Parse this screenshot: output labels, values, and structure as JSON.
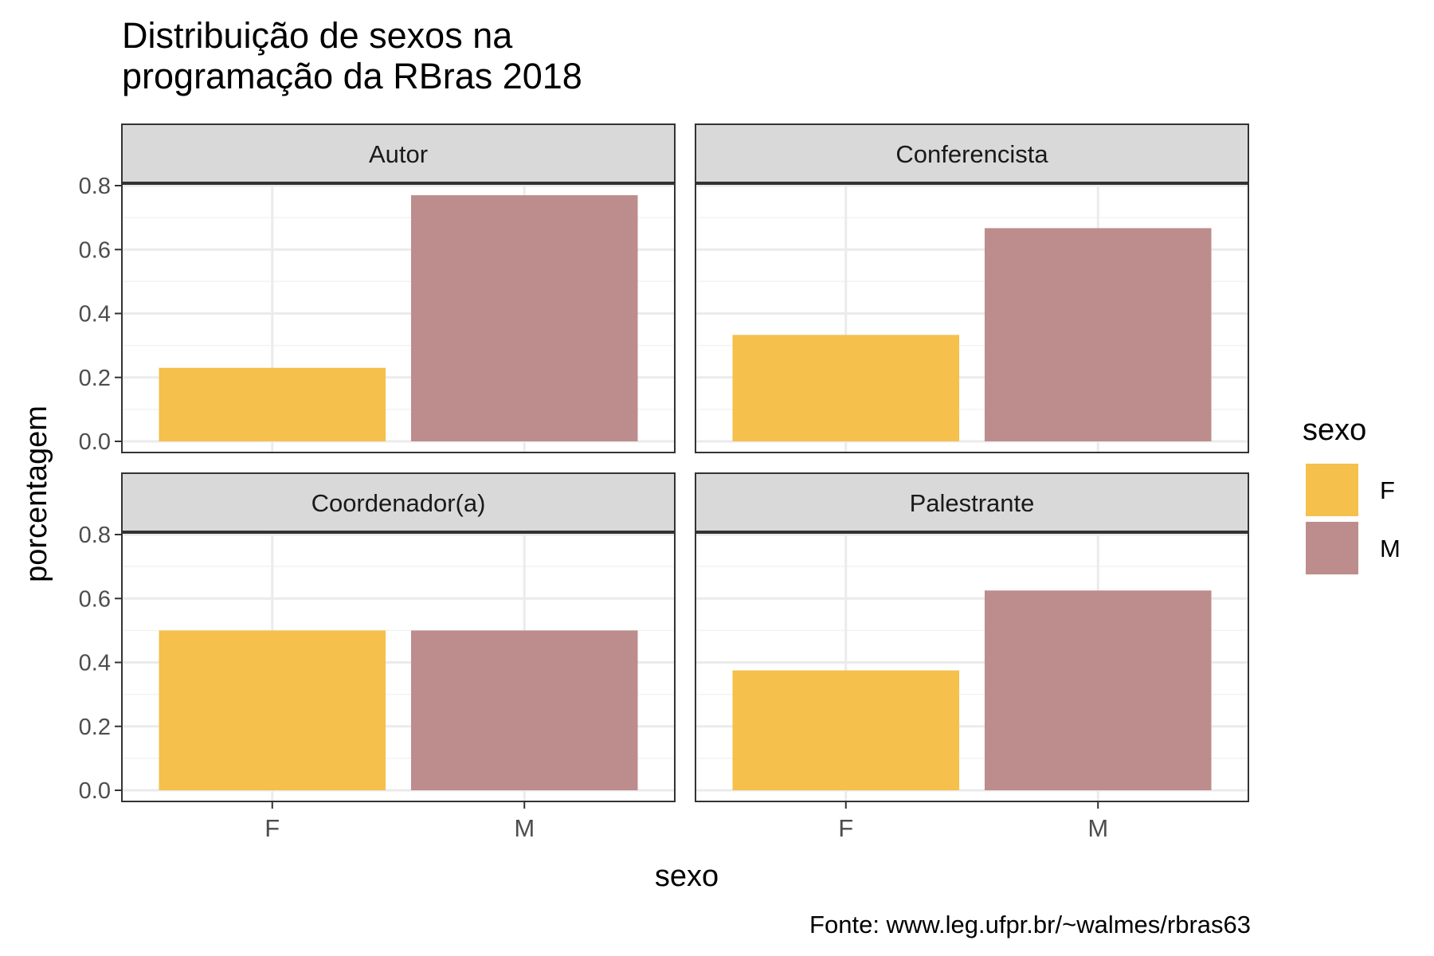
{
  "chart_data": {
    "type": "bar",
    "title": "Distribuição de sexos na\nprogramação da RBras 2018",
    "xlabel": "sexo",
    "ylabel": "porcentagem",
    "caption": "Fonte: www.leg.ufpr.br/~walmes/rbras63",
    "categories": [
      "F",
      "M"
    ],
    "ylim": [
      0,
      0.8
    ],
    "yticks": [
      "0.0",
      "0.2",
      "0.4",
      "0.6",
      "0.8"
    ],
    "legend": {
      "title": "sexo",
      "position": "right",
      "items": [
        {
          "label": "F",
          "color": "#F5C04B"
        },
        {
          "label": "M",
          "color": "#BC8D8C"
        }
      ]
    },
    "facets": [
      {
        "name": "Autor",
        "values": [
          0.23,
          0.77
        ]
      },
      {
        "name": "Conferencista",
        "values": [
          0.333,
          0.667
        ]
      },
      {
        "name": "Coordenador(a)",
        "values": [
          0.5,
          0.5
        ]
      },
      {
        "name": "Palestrante",
        "values": [
          0.375,
          0.625
        ]
      }
    ],
    "grid": true
  }
}
